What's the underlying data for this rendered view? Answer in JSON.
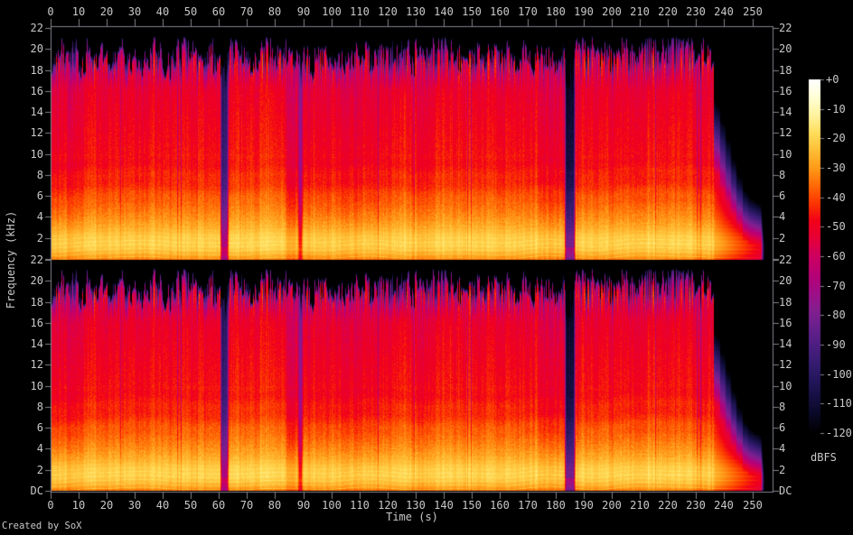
{
  "chart_data": {
    "type": "heatmap",
    "subtype": "audio-spectrogram",
    "channels": 2,
    "credit": "Created by SoX",
    "x_axis": {
      "label": "Time (s)",
      "unit": "s",
      "min": 0,
      "max": 257,
      "ticks": [
        0,
        10,
        20,
        30,
        40,
        50,
        60,
        70,
        80,
        90,
        100,
        110,
        120,
        130,
        140,
        150,
        160,
        170,
        180,
        190,
        200,
        210,
        220,
        230,
        240,
        250
      ]
    },
    "y_axis": {
      "label": "Frequency (kHz)",
      "unit": "kHz",
      "min": 0,
      "max": 22,
      "ticks": [
        "22",
        "20",
        "18",
        "16",
        "14",
        "12",
        "10",
        "8",
        "6",
        "4",
        "2",
        "DC"
      ]
    },
    "colorbar": {
      "label": "dBFS",
      "max": 0,
      "min": -120,
      "ticks": [
        "+0",
        "-10",
        "-20",
        "-30",
        "-40",
        "-50",
        "-60",
        "-70",
        "-80",
        "-90",
        "-100",
        "-110",
        "-120"
      ],
      "palette": [
        [
          0,
          "#ffffff"
        ],
        [
          -6,
          "#ffffd5"
        ],
        [
          -12,
          "#fff3a0"
        ],
        [
          -18,
          "#ffde5b"
        ],
        [
          -24,
          "#ffbe36"
        ],
        [
          -30,
          "#ff9a18"
        ],
        [
          -36,
          "#ff6906"
        ],
        [
          -42,
          "#fb3500"
        ],
        [
          -48,
          "#f20019"
        ],
        [
          -54,
          "#e60038"
        ],
        [
          -60,
          "#cd0060"
        ],
        [
          -66,
          "#b80075"
        ],
        [
          -72,
          "#a00d86"
        ],
        [
          -78,
          "#851e8f"
        ],
        [
          -84,
          "#68208c"
        ],
        [
          -90,
          "#4e1e82"
        ],
        [
          -96,
          "#371c72"
        ],
        [
          -102,
          "#24165c"
        ],
        [
          -108,
          "#150f41"
        ],
        [
          -114,
          "#090825"
        ],
        [
          -120,
          "#000000"
        ]
      ]
    },
    "signal": {
      "duration_s": 253.0,
      "spectral_profile_db": [
        [
          0,
          -34
        ],
        [
          0.25,
          -28
        ],
        [
          0.9,
          -22
        ],
        [
          1.5,
          -19.5
        ],
        [
          2.2,
          -21
        ],
        [
          3,
          -26
        ],
        [
          4,
          -31
        ],
        [
          5,
          -35
        ],
        [
          6,
          -38.5
        ],
        [
          7.5,
          -43.5
        ],
        [
          9,
          -46
        ],
        [
          11,
          -47.5
        ],
        [
          13,
          -49
        ],
        [
          16,
          -51.5
        ],
        [
          17.5,
          -54
        ],
        [
          18.6,
          -57
        ],
        [
          19.4,
          -63
        ],
        [
          20,
          -72
        ],
        [
          20.6,
          -85
        ],
        [
          21.3,
          -98
        ],
        [
          22,
          -105
        ]
      ],
      "dips": [
        {
          "t": 61.8,
          "width": 1.8,
          "depth_db": 50
        },
        {
          "t": 85.6,
          "width": 3.2,
          "depth_db": 5
        },
        {
          "t": 88.8,
          "width": 0.7,
          "depth_db": 24
        },
        {
          "t": 184.9,
          "width": 2.6,
          "depth_db": 62
        }
      ],
      "sections": [
        {
          "t0": 0,
          "t1": 11.5,
          "db": -3.5
        },
        {
          "t0": 63,
          "t1": 84,
          "db": 1.5
        },
        {
          "t0": 84,
          "t1": 90,
          "db": -2.5
        },
        {
          "t0": 95,
          "t1": 118,
          "db": -2.5
        },
        {
          "t0": 174,
          "t1": 184,
          "db": -3
        }
      ],
      "spike_boost": [
        [
          118,
          141,
          0.5
        ],
        [
          186,
          235,
          0.8
        ]
      ],
      "tail": {
        "start_s": 236.3,
        "end_s": 253.0
      }
    }
  }
}
